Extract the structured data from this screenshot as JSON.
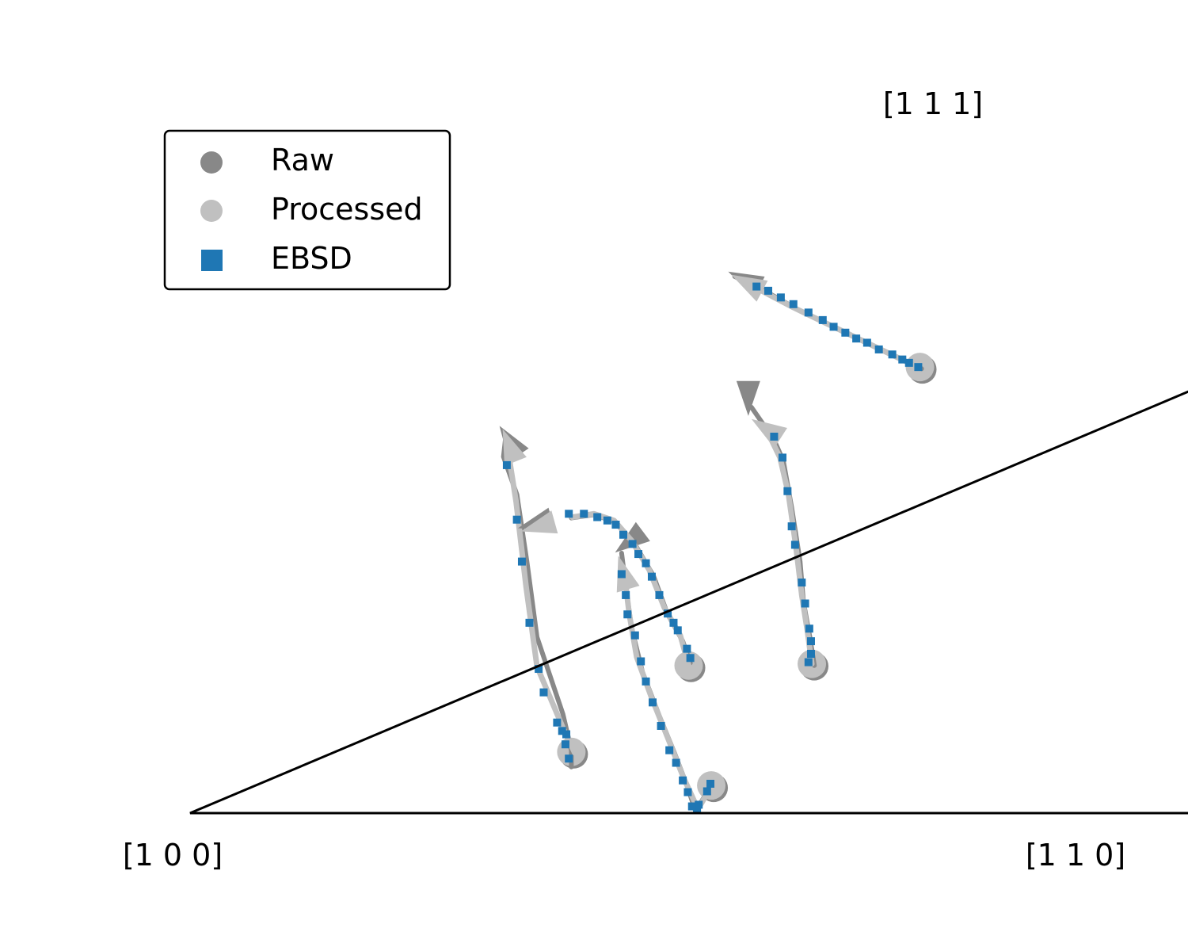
{
  "chart_data": {
    "type": "scatter",
    "title": "",
    "corners": {
      "c100": "[1 0 0]",
      "c110": "[1 1 0]",
      "c111": "[1 1 1]"
    },
    "legend": {
      "placement": "top-left",
      "entries": [
        {
          "label": "Raw",
          "marker": "circle",
          "color": "#888888"
        },
        {
          "label": "Processed",
          "marker": "circle",
          "color": "#c0c0c0"
        },
        {
          "label": "EBSD",
          "marker": "square",
          "color": "#1f77b4"
        }
      ]
    },
    "colors": {
      "raw": "#888888",
      "processed": "#c0c0c0",
      "ebsd": "#1f77b4",
      "boundary": "#000000"
    },
    "trajectories": [
      {
        "start": [
          0.455,
          0.073
        ],
        "raw": [
          [
            0.455,
            0.055
          ],
          [
            0.455,
            0.075
          ],
          [
            0.445,
            0.118
          ],
          [
            0.414,
            0.21
          ],
          [
            0.402,
            0.3
          ],
          [
            0.39,
            0.38
          ],
          [
            0.374,
            0.425
          ],
          [
            0.377,
            0.452
          ]
        ],
        "processed": [
          [
            0.459,
            0.072
          ],
          [
            0.447,
            0.097
          ],
          [
            0.414,
            0.175
          ],
          [
            0.401,
            0.27
          ],
          [
            0.389,
            0.372
          ],
          [
            0.377,
            0.448
          ]
        ],
        "arrow_tip": [
          0.373,
          0.458
        ],
        "ebsd": [
          [
            0.452,
            0.065
          ],
          [
            0.448,
            0.082
          ],
          [
            0.449,
            0.094
          ],
          [
            0.444,
            0.098
          ],
          [
            0.438,
            0.108
          ],
          [
            0.422,
            0.144
          ],
          [
            0.416,
            0.172
          ],
          [
            0.405,
            0.227
          ],
          [
            0.396,
            0.3
          ],
          [
            0.39,
            0.35
          ],
          [
            0.378,
            0.415
          ]
        ]
      },
      {
        "start": [
          0.622,
          0.033
        ],
        "raw": [
          [
            0.62,
            0.03
          ],
          [
            0.608,
            0.01
          ],
          [
            0.603,
            0.003
          ],
          [
            0.593,
            0.033
          ],
          [
            0.578,
            0.072
          ],
          [
            0.56,
            0.116
          ],
          [
            0.54,
            0.168
          ],
          [
            0.527,
            0.22
          ],
          [
            0.52,
            0.27
          ],
          [
            0.515,
            0.31
          ]
        ],
        "processed": [
          [
            0.623,
            0.034
          ],
          [
            0.611,
            0.013
          ],
          [
            0.606,
            0.005
          ],
          [
            0.589,
            0.042
          ],
          [
            0.57,
            0.09
          ],
          [
            0.551,
            0.137
          ],
          [
            0.533,
            0.186
          ],
          [
            0.524,
            0.238
          ],
          [
            0.519,
            0.28
          ]
        ],
        "arrow_tip": [
          0.511,
          0.307
        ],
        "ebsd": [
          [
            0.621,
            0.035
          ],
          [
            0.617,
            0.026
          ],
          [
            0.607,
            0.01
          ],
          [
            0.605,
            0.006
          ],
          [
            0.599,
            0.008
          ],
          [
            0.594,
            0.025
          ],
          [
            0.588,
            0.039
          ],
          [
            0.58,
            0.06
          ],
          [
            0.572,
            0.075
          ],
          [
            0.562,
            0.104
          ],
          [
            0.552,
            0.132
          ],
          [
            0.544,
            0.157
          ],
          [
            0.538,
            0.181
          ],
          [
            0.531,
            0.212
          ],
          [
            0.522,
            0.237
          ],
          [
            0.52,
            0.26
          ],
          [
            0.515,
            0.285
          ]
        ]
      },
      {
        "start": [
          0.595,
          0.176
        ],
        "raw": [
          [
            0.597,
            0.179
          ],
          [
            0.588,
            0.205
          ],
          [
            0.57,
            0.237
          ],
          [
            0.553,
            0.283
          ],
          [
            0.53,
            0.322
          ],
          [
            0.508,
            0.347
          ],
          [
            0.482,
            0.356
          ],
          [
            0.455,
            0.352
          ]
        ],
        "processed": [
          [
            0.595,
            0.176
          ],
          [
            0.585,
            0.212
          ],
          [
            0.566,
            0.245
          ],
          [
            0.548,
            0.29
          ],
          [
            0.527,
            0.325
          ],
          [
            0.506,
            0.349
          ],
          [
            0.482,
            0.357
          ],
          [
            0.456,
            0.353
          ]
        ],
        "arrow_tip": [
          0.395,
          0.336
        ],
        "ebsd": [
          [
            0.597,
            0.185
          ],
          [
            0.593,
            0.196
          ],
          [
            0.582,
            0.218
          ],
          [
            0.577,
            0.227
          ],
          [
            0.57,
            0.238
          ],
          [
            0.56,
            0.26
          ],
          [
            0.551,
            0.282
          ],
          [
            0.544,
            0.298
          ],
          [
            0.535,
            0.309
          ],
          [
            0.528,
            0.321
          ],
          [
            0.517,
            0.332
          ],
          [
            0.508,
            0.344
          ],
          [
            0.498,
            0.349
          ],
          [
            0.486,
            0.353
          ],
          [
            0.47,
            0.357
          ],
          [
            0.452,
            0.357
          ]
        ]
      },
      {
        "start": [
          0.742,
          0.178
        ],
        "raw": [
          [
            0.745,
            0.176
          ],
          [
            0.74,
            0.208
          ],
          [
            0.732,
            0.252
          ],
          [
            0.728,
            0.3
          ],
          [
            0.718,
            0.364
          ],
          [
            0.708,
            0.42
          ],
          [
            0.697,
            0.445
          ],
          [
            0.67,
            0.484
          ]
        ],
        "processed": [
          [
            0.742,
            0.178
          ],
          [
            0.737,
            0.215
          ],
          [
            0.73,
            0.26
          ],
          [
            0.723,
            0.318
          ],
          [
            0.714,
            0.381
          ],
          [
            0.704,
            0.424
          ],
          [
            0.687,
            0.459
          ]
        ],
        "arrow_tip": [
          0.67,
          0.47
        ],
        "ebsd": [
          [
            0.738,
            0.18
          ],
          [
            0.741,
            0.19
          ],
          [
            0.741,
            0.205
          ],
          [
            0.739,
            0.22
          ],
          [
            0.734,
            0.25
          ],
          [
            0.73,
            0.275
          ],
          [
            0.722,
            0.32
          ],
          [
            0.718,
            0.342
          ],
          [
            0.713,
            0.384
          ],
          [
            0.707,
            0.424
          ],
          [
            0.697,
            0.449
          ]
        ]
      },
      {
        "start": [
          0.871,
          0.532
        ],
        "raw": [
          [
            0.873,
            0.53
          ],
          [
            0.83,
            0.55
          ],
          [
            0.78,
            0.574
          ],
          [
            0.73,
            0.598
          ],
          [
            0.68,
            0.626
          ],
          [
            0.65,
            0.64
          ]
        ],
        "processed": [
          [
            0.87,
            0.531
          ],
          [
            0.82,
            0.555
          ],
          [
            0.77,
            0.579
          ],
          [
            0.72,
            0.603
          ],
          [
            0.68,
            0.624
          ]
        ],
        "arrow_tip": [
          0.646,
          0.642
        ],
        "ebsd": [
          [
            0.869,
            0.532
          ],
          [
            0.858,
            0.537
          ],
          [
            0.85,
            0.541
          ],
          [
            0.838,
            0.547
          ],
          [
            0.822,
            0.553
          ],
          [
            0.808,
            0.561
          ],
          [
            0.795,
            0.566
          ],
          [
            0.782,
            0.573
          ],
          [
            0.768,
            0.58
          ],
          [
            0.755,
            0.588
          ],
          [
            0.738,
            0.597
          ],
          [
            0.72,
            0.607
          ],
          [
            0.705,
            0.615
          ],
          [
            0.69,
            0.623
          ],
          [
            0.676,
            0.628
          ]
        ]
      }
    ]
  }
}
